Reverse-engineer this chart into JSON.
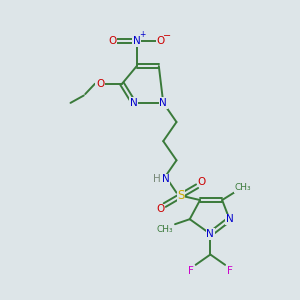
{
  "background_color": "#dde5e8",
  "atom_colors": {
    "C": "#3a7a3a",
    "N": "#0000cc",
    "O": "#cc0000",
    "S": "#ccaa00",
    "F": "#cc00cc",
    "H": "#778877"
  },
  "bond_color": "#3a7a3a",
  "bond_lw": 1.4
}
